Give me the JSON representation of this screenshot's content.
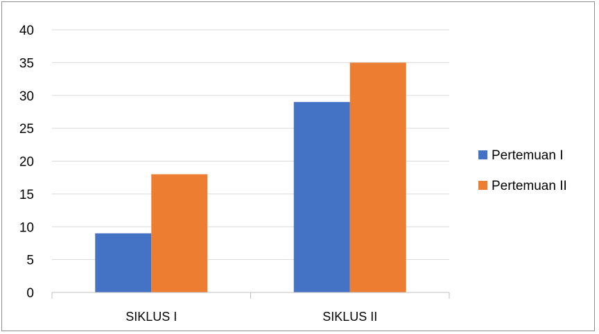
{
  "chart_data": {
    "type": "bar",
    "categories": [
      "SIKLUS I",
      "SIKLUS II"
    ],
    "series": [
      {
        "name": "Pertemuan I",
        "values": [
          9,
          29
        ],
        "color": "#4472C4"
      },
      {
        "name": "Pertemuan II",
        "values": [
          18,
          35
        ],
        "color": "#ED7D31"
      }
    ],
    "yticks": [
      0,
      5,
      10,
      15,
      20,
      25,
      30,
      35,
      40
    ],
    "ylim": [
      0,
      40
    ],
    "grid": true,
    "legend": "right",
    "title": "",
    "xlabel": "",
    "ylabel": ""
  }
}
